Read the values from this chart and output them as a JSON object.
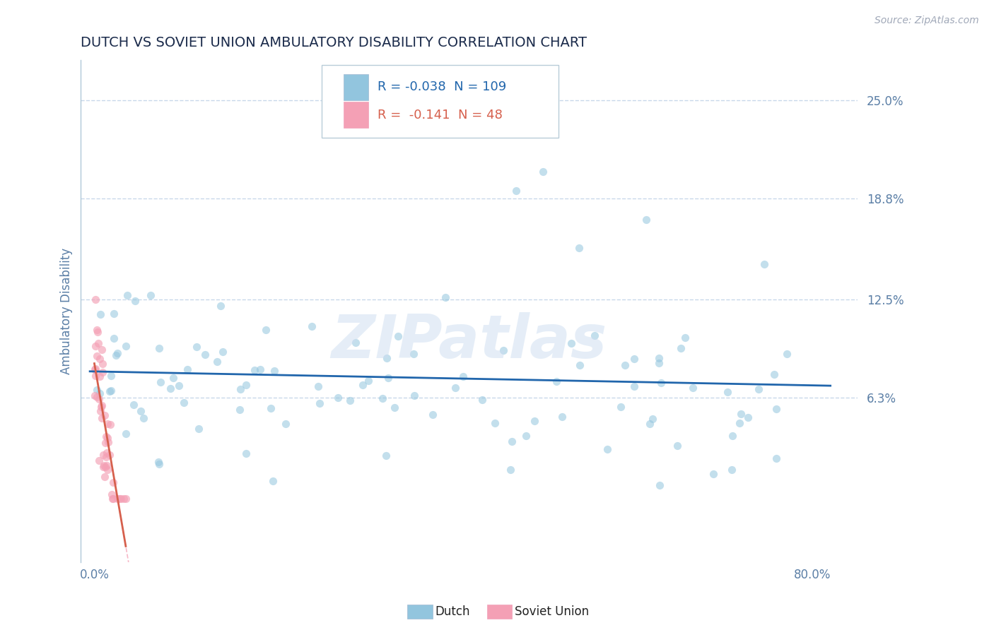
{
  "title": "DUTCH VS SOVIET UNION AMBULATORY DISABILITY CORRELATION CHART",
  "source_text": "Source: ZipAtlas.com",
  "ylabel": "Ambulatory Disability",
  "ytick_vals": [
    0.063,
    0.125,
    0.188,
    0.25
  ],
  "ytick_labs": [
    "6.3%",
    "12.5%",
    "18.8%",
    "25.0%"
  ],
  "xtick_vals": [
    0.0,
    0.8
  ],
  "xtick_labs": [
    "0.0%",
    "80.0%"
  ],
  "xlim": [
    -0.015,
    0.85
  ],
  "ylim": [
    -0.04,
    0.275
  ],
  "dutch_color": "#92c5de",
  "soviet_color": "#f4a0b5",
  "dutch_line_color": "#2166ac",
  "soviet_line_color": "#d6604d",
  "dutch_R": -0.038,
  "dutch_N": 109,
  "soviet_R": -0.141,
  "soviet_N": 48,
  "legend_dutch_label": "Dutch",
  "legend_soviet_label": "Soviet Union",
  "watermark": "ZIPatlas",
  "background_color": "#ffffff",
  "grid_color": "#c8d8ea",
  "title_color": "#1a2a4a",
  "axis_label_color": "#5b7fa6",
  "tick_color": "#5b7fa6",
  "marker_size": 65,
  "marker_alpha": 0.55
}
